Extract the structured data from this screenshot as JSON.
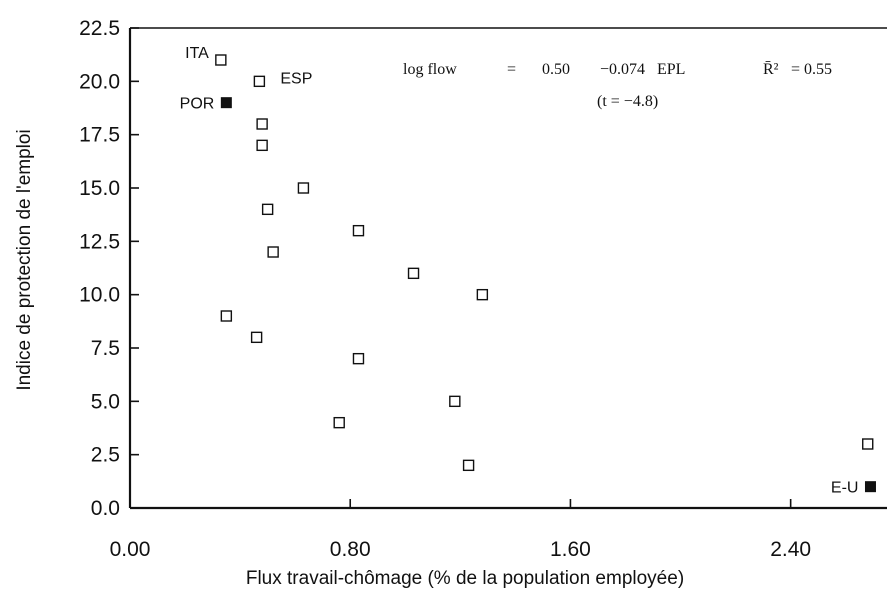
{
  "chart_data": {
    "type": "scatter",
    "title": "",
    "xlabel": "Flux travail-chômage (% de la population employée)",
    "ylabel": "Indice de protection de l'emploi",
    "xlim": [
      0.0,
      2.75
    ],
    "ylim": [
      0.0,
      22.5
    ],
    "xticks": [
      "0.00",
      "0.80",
      "1.60",
      "2.40"
    ],
    "xtick_values": [
      0.0,
      0.8,
      1.6,
      2.4
    ],
    "yticks": [
      "0.0",
      "2.5",
      "5.0",
      "7.5",
      "10.0",
      "12.5",
      "15.0",
      "17.5",
      "20.0",
      "22.5"
    ],
    "ytick_values": [
      0.0,
      2.5,
      5.0,
      7.5,
      10.0,
      12.5,
      15.0,
      17.5,
      20.0,
      22.5
    ],
    "grid": false,
    "annotation": {
      "lhs": "log flow",
      "eq": "=",
      "constant": "0.50",
      "coef": "−0.074",
      "var": "EPL",
      "tstat": "(t = −4.8)",
      "r2_symbol": "R̄²",
      "r2_rest": "= 0.55"
    },
    "points": [
      {
        "x": 0.33,
        "y": 21.0,
        "label": "ITA",
        "marker": "open",
        "color": "#ffffff"
      },
      {
        "x": 0.47,
        "y": 20.0,
        "label": "ESP",
        "marker": "open",
        "color": "#ffffff"
      },
      {
        "x": 0.35,
        "y": 19.0,
        "label": "POR",
        "marker": "filled",
        "color": "#111111"
      },
      {
        "x": 0.48,
        "y": 18.0,
        "label": "",
        "marker": "open",
        "color": "#ffffff"
      },
      {
        "x": 0.48,
        "y": 17.0,
        "label": "",
        "marker": "open",
        "color": "#ffffff"
      },
      {
        "x": 0.63,
        "y": 15.0,
        "label": "",
        "marker": "open",
        "color": "#ffffff"
      },
      {
        "x": 0.5,
        "y": 14.0,
        "label": "",
        "marker": "open",
        "color": "#ffffff"
      },
      {
        "x": 0.83,
        "y": 13.0,
        "label": "",
        "marker": "open",
        "color": "#ffffff"
      },
      {
        "x": 0.52,
        "y": 12.0,
        "label": "",
        "marker": "open",
        "color": "#ffffff"
      },
      {
        "x": 1.03,
        "y": 11.0,
        "label": "",
        "marker": "open",
        "color": "#ffffff"
      },
      {
        "x": 1.28,
        "y": 10.0,
        "label": "",
        "marker": "open",
        "color": "#ffffff"
      },
      {
        "x": 0.35,
        "y": 9.0,
        "label": "",
        "marker": "open",
        "color": "#ffffff"
      },
      {
        "x": 0.46,
        "y": 8.0,
        "label": "",
        "marker": "open",
        "color": "#ffffff"
      },
      {
        "x": 0.83,
        "y": 7.0,
        "label": "",
        "marker": "open",
        "color": "#ffffff"
      },
      {
        "x": 1.18,
        "y": 5.0,
        "label": "",
        "marker": "open",
        "color": "#ffffff"
      },
      {
        "x": 0.76,
        "y": 4.0,
        "label": "",
        "marker": "open",
        "color": "#ffffff"
      },
      {
        "x": 2.68,
        "y": 3.0,
        "label": "",
        "marker": "open",
        "color": "#ffffff"
      },
      {
        "x": 1.23,
        "y": 2.0,
        "label": "",
        "marker": "open",
        "color": "#ffffff"
      },
      {
        "x": 2.69,
        "y": 1.0,
        "label": "E-U",
        "marker": "filled",
        "color": "#111111"
      }
    ]
  }
}
